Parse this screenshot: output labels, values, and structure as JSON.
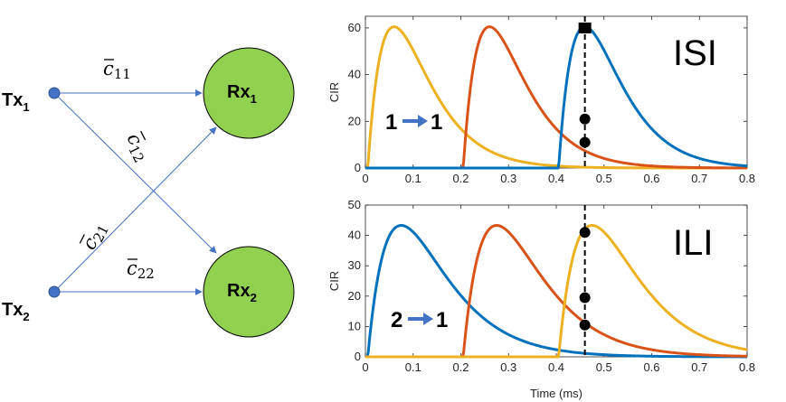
{
  "network": {
    "tx1": {
      "label": "Tx",
      "sub": "1"
    },
    "tx2": {
      "label": "Tx",
      "sub": "2"
    },
    "rx1": {
      "label": "Rx",
      "sub": "1"
    },
    "rx2": {
      "label": "Rx",
      "sub": "2"
    },
    "channels": [
      {
        "id": "c11",
        "base": "c",
        "sub": "11"
      },
      {
        "id": "c12",
        "base": "c",
        "sub": "12"
      },
      {
        "id": "c21",
        "base": "c",
        "sub": "21"
      },
      {
        "id": "c22",
        "base": "c",
        "sub": "22"
      }
    ],
    "colors": {
      "node_fill": "#92d050",
      "tx_fill": "#4472c4",
      "link": "#4472c4"
    }
  },
  "chart_data": [
    {
      "type": "line",
      "id": "isi",
      "title": "ISI",
      "xlabel": "",
      "ylabel": "CIR",
      "xlim": [
        0,
        0.8
      ],
      "ylim": [
        0,
        65
      ],
      "xticks": [
        "0",
        "0.1",
        "0.2",
        "0.3",
        "0.4",
        "0.5",
        "0.6",
        "0.7",
        "0.8"
      ],
      "yticks": [
        "0",
        "20",
        "40",
        "60"
      ],
      "series": [
        {
          "name": "yellow",
          "color": "#edb120",
          "onset": 0.005,
          "peak_time": 0.06,
          "peak": 60.5
        },
        {
          "name": "red",
          "color": "#d95319",
          "onset": 0.205,
          "peak_time": 0.26,
          "peak": 60.5
        },
        {
          "name": "blue",
          "color": "#0072bd",
          "onset": 0.405,
          "peak_time": 0.46,
          "peak": 60.5
        }
      ],
      "sample_time": 0.46,
      "sample_points": [
        60,
        21,
        11
      ],
      "annotation": {
        "from": "1",
        "to": "1"
      }
    },
    {
      "type": "line",
      "id": "ili",
      "title": "ILI",
      "xlabel": "Time (ms)",
      "ylabel": "CIR",
      "xlim": [
        0,
        0.8
      ],
      "ylim": [
        0,
        50
      ],
      "xticks": [
        "0",
        "0.1",
        "0.2",
        "0.3",
        "0.4",
        "0.5",
        "0.6",
        "0.7",
        "0.8"
      ],
      "yticks": [
        "0",
        "10",
        "20",
        "30",
        "40",
        "50"
      ],
      "series": [
        {
          "name": "blue",
          "color": "#0072bd",
          "onset": 0.005,
          "peak_time": 0.075,
          "peak": 43.3
        },
        {
          "name": "red",
          "color": "#d95319",
          "onset": 0.205,
          "peak_time": 0.275,
          "peak": 43.3
        },
        {
          "name": "yellow",
          "color": "#edb120",
          "onset": 0.405,
          "peak_time": 0.475,
          "peak": 43.3
        }
      ],
      "sample_time": 0.46,
      "sample_points": [
        41,
        19.5,
        10.5
      ],
      "annotation": {
        "from": "2",
        "to": "1"
      }
    }
  ]
}
